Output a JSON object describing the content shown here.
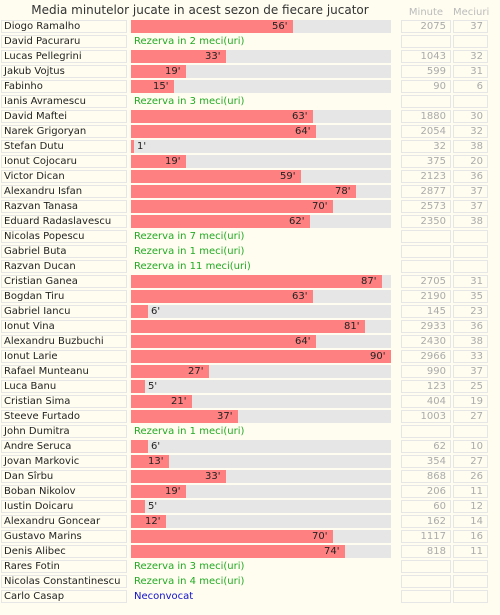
{
  "title": "Media minutelor jucate in acest sezon de fiecare jucator",
  "headers": {
    "minute": "Minute",
    "meciuri": "Meciuri"
  },
  "colors": {
    "bar": "#ff8080",
    "track": "#e6e6e6",
    "rezerva": "#22aa22",
    "neconvocat": "#1111cc"
  },
  "chart_data": {
    "type": "bar",
    "orientation": "horizontal",
    "title": "Media minutelor jucate in acest sezon de fiecare jucator",
    "xlim": [
      0,
      90
    ],
    "columns": [
      "Minute",
      "Meciuri"
    ],
    "rows": [
      {
        "name": "Diogo Ramalho",
        "avg": 56,
        "label": "56'",
        "minute": "2075",
        "meciuri": "37"
      },
      {
        "name": "David Pacuraru",
        "note": "Rezerva in 2 meci(uri)",
        "noteType": "rez"
      },
      {
        "name": "Lucas Pellegrini",
        "avg": 33,
        "label": "33'",
        "minute": "1043",
        "meciuri": "32"
      },
      {
        "name": "Jakub Vojtus",
        "avg": 19,
        "label": "19'",
        "minute": "599",
        "meciuri": "31"
      },
      {
        "name": "Fabinho",
        "avg": 15,
        "label": "15'",
        "minute": "90",
        "meciuri": "6"
      },
      {
        "name": "Ianis Avramescu",
        "note": "Rezerva in 3 meci(uri)",
        "noteType": "rez"
      },
      {
        "name": "David Maftei",
        "avg": 63,
        "label": "63'",
        "minute": "1880",
        "meciuri": "30"
      },
      {
        "name": "Narek Grigoryan",
        "avg": 64,
        "label": "64'",
        "minute": "2054",
        "meciuri": "32"
      },
      {
        "name": "Stefan Dutu",
        "avg": 1,
        "label": "1'",
        "minute": "32",
        "meciuri": "38"
      },
      {
        "name": "Ionut Cojocaru",
        "avg": 19,
        "label": "19'",
        "minute": "375",
        "meciuri": "20"
      },
      {
        "name": "Victor Dican",
        "avg": 59,
        "label": "59'",
        "minute": "2123",
        "meciuri": "36"
      },
      {
        "name": "Alexandru Isfan",
        "avg": 78,
        "label": "78'",
        "minute": "2877",
        "meciuri": "37"
      },
      {
        "name": "Razvan Tanasa",
        "avg": 70,
        "label": "70'",
        "minute": "2573",
        "meciuri": "37"
      },
      {
        "name": "Eduard Radaslavescu",
        "avg": 62,
        "label": "62'",
        "minute": "2350",
        "meciuri": "38"
      },
      {
        "name": "Nicolas Popescu",
        "note": "Rezerva in 7 meci(uri)",
        "noteType": "rez"
      },
      {
        "name": "Gabriel Buta",
        "note": "Rezerva in 1 meci(uri)",
        "noteType": "rez"
      },
      {
        "name": "Razvan Ducan",
        "note": "Rezerva in 11 meci(uri)",
        "noteType": "rez"
      },
      {
        "name": "Cristian Ganea",
        "avg": 87,
        "label": "87'",
        "minute": "2705",
        "meciuri": "31"
      },
      {
        "name": "Bogdan Tiru",
        "avg": 63,
        "label": "63'",
        "minute": "2190",
        "meciuri": "35"
      },
      {
        "name": "Gabriel Iancu",
        "avg": 6,
        "label": "6'",
        "minute": "145",
        "meciuri": "23"
      },
      {
        "name": "Ionut Vina",
        "avg": 81,
        "label": "81'",
        "minute": "2933",
        "meciuri": "36"
      },
      {
        "name": "Alexandru Buzbuchi",
        "avg": 64,
        "label": "64'",
        "minute": "2430",
        "meciuri": "38"
      },
      {
        "name": "Ionut Larie",
        "avg": 90,
        "label": "90'",
        "minute": "2966",
        "meciuri": "33"
      },
      {
        "name": "Rafael Munteanu",
        "avg": 27,
        "label": "27'",
        "minute": "990",
        "meciuri": "37"
      },
      {
        "name": "Luca Banu",
        "avg": 5,
        "label": "5'",
        "minute": "123",
        "meciuri": "25"
      },
      {
        "name": "Cristian Sima",
        "avg": 21,
        "label": "21'",
        "minute": "404",
        "meciuri": "19"
      },
      {
        "name": "Steeve Furtado",
        "avg": 37,
        "label": "37'",
        "minute": "1003",
        "meciuri": "27"
      },
      {
        "name": "John Dumitra",
        "note": "Rezerva in 1 meci(uri)",
        "noteType": "rez"
      },
      {
        "name": "Andre Seruca",
        "avg": 6,
        "label": "6'",
        "minute": "62",
        "meciuri": "10"
      },
      {
        "name": "Jovan Markovic",
        "avg": 13,
        "label": "13'",
        "minute": "354",
        "meciuri": "27"
      },
      {
        "name": "Dan Sîrbu",
        "avg": 33,
        "label": "33'",
        "minute": "868",
        "meciuri": "26"
      },
      {
        "name": "Boban Nikolov",
        "avg": 19,
        "label": "19'",
        "minute": "206",
        "meciuri": "11"
      },
      {
        "name": "Iustin Doicaru",
        "avg": 5,
        "label": "5'",
        "minute": "60",
        "meciuri": "12"
      },
      {
        "name": "Alexandru Goncear",
        "avg": 12,
        "label": "12'",
        "minute": "162",
        "meciuri": "14"
      },
      {
        "name": "Gustavo Marins",
        "avg": 70,
        "label": "70'",
        "minute": "1117",
        "meciuri": "16"
      },
      {
        "name": "Denis Alibec",
        "avg": 74,
        "label": "74'",
        "minute": "818",
        "meciuri": "11"
      },
      {
        "name": "Rares Fotin",
        "note": "Rezerva in 3 meci(uri)",
        "noteType": "rez"
      },
      {
        "name": "Nicolas Constantinescu",
        "note": "Rezerva in 4 meci(uri)",
        "noteType": "rez"
      },
      {
        "name": "Carlo Casap",
        "note": "Neconvocat",
        "noteType": "nec"
      }
    ]
  }
}
